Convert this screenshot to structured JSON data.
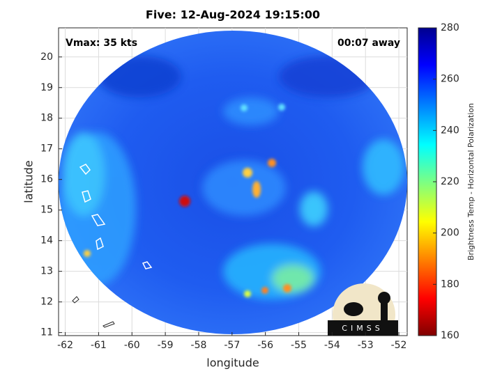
{
  "title": "Five: 12-Aug-2024 19:15:00",
  "annotations": {
    "left": "Vmax: 35 kts",
    "right": "00:07 away"
  },
  "map": {
    "xlabel": "longitude",
    "ylabel": "latitude",
    "xlim": [
      -62.2,
      -51.75
    ],
    "ylim": [
      10.9,
      20.95
    ],
    "xticks": [
      -62,
      -61,
      -60,
      -59,
      -58,
      -57,
      -56,
      -55,
      -54,
      -53,
      -52
    ],
    "yticks": [
      11,
      12,
      13,
      14,
      15,
      16,
      17,
      18,
      19,
      20
    ],
    "grid": true
  },
  "colorbar": {
    "label": "Brightness Temp - Horizontal Polarization",
    "lim": [
      160,
      280
    ],
    "ticks": [
      160,
      180,
      200,
      220,
      240,
      260,
      280
    ]
  },
  "logo": "CIMSS"
}
